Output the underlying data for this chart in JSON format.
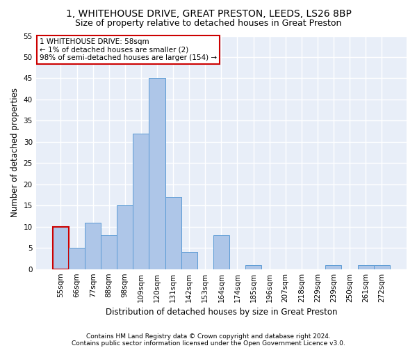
{
  "title1": "1, WHITEHOUSE DRIVE, GREAT PRESTON, LEEDS, LS26 8BP",
  "title2": "Size of property relative to detached houses in Great Preston",
  "xlabel": "Distribution of detached houses by size in Great Preston",
  "ylabel": "Number of detached properties",
  "footnote1": "Contains HM Land Registry data © Crown copyright and database right 2024.",
  "footnote2": "Contains public sector information licensed under the Open Government Licence v3.0.",
  "categories": [
    "55sqm",
    "66sqm",
    "77sqm",
    "88sqm",
    "98sqm",
    "109sqm",
    "120sqm",
    "131sqm",
    "142sqm",
    "153sqm",
    "164sqm",
    "174sqm",
    "185sqm",
    "196sqm",
    "207sqm",
    "218sqm",
    "229sqm",
    "239sqm",
    "250sqm",
    "261sqm",
    "272sqm"
  ],
  "values": [
    10,
    5,
    11,
    8,
    15,
    32,
    45,
    17,
    4,
    0,
    8,
    0,
    1,
    0,
    0,
    0,
    0,
    1,
    0,
    1,
    1
  ],
  "bar_color": "#aec6e8",
  "bar_edge_color": "#5b9bd5",
  "highlight_bar_edge_color": "#cc0000",
  "annotation_text": "1 WHITEHOUSE DRIVE: 58sqm\n← 1% of detached houses are smaller (2)\n98% of semi-detached houses are larger (154) →",
  "annotation_box_color": "#ffffff",
  "annotation_box_edge_color": "#cc0000",
  "ylim": [
    0,
    55
  ],
  "yticks": [
    0,
    5,
    10,
    15,
    20,
    25,
    30,
    35,
    40,
    45,
    50,
    55
  ],
  "bg_color": "#e8eef8",
  "grid_color": "#ffffff",
  "title_fontsize": 10,
  "subtitle_fontsize": 9,
  "axis_label_fontsize": 8.5,
  "tick_fontsize": 7.5,
  "annotation_fontsize": 7.5,
  "footnote_fontsize": 6.5
}
